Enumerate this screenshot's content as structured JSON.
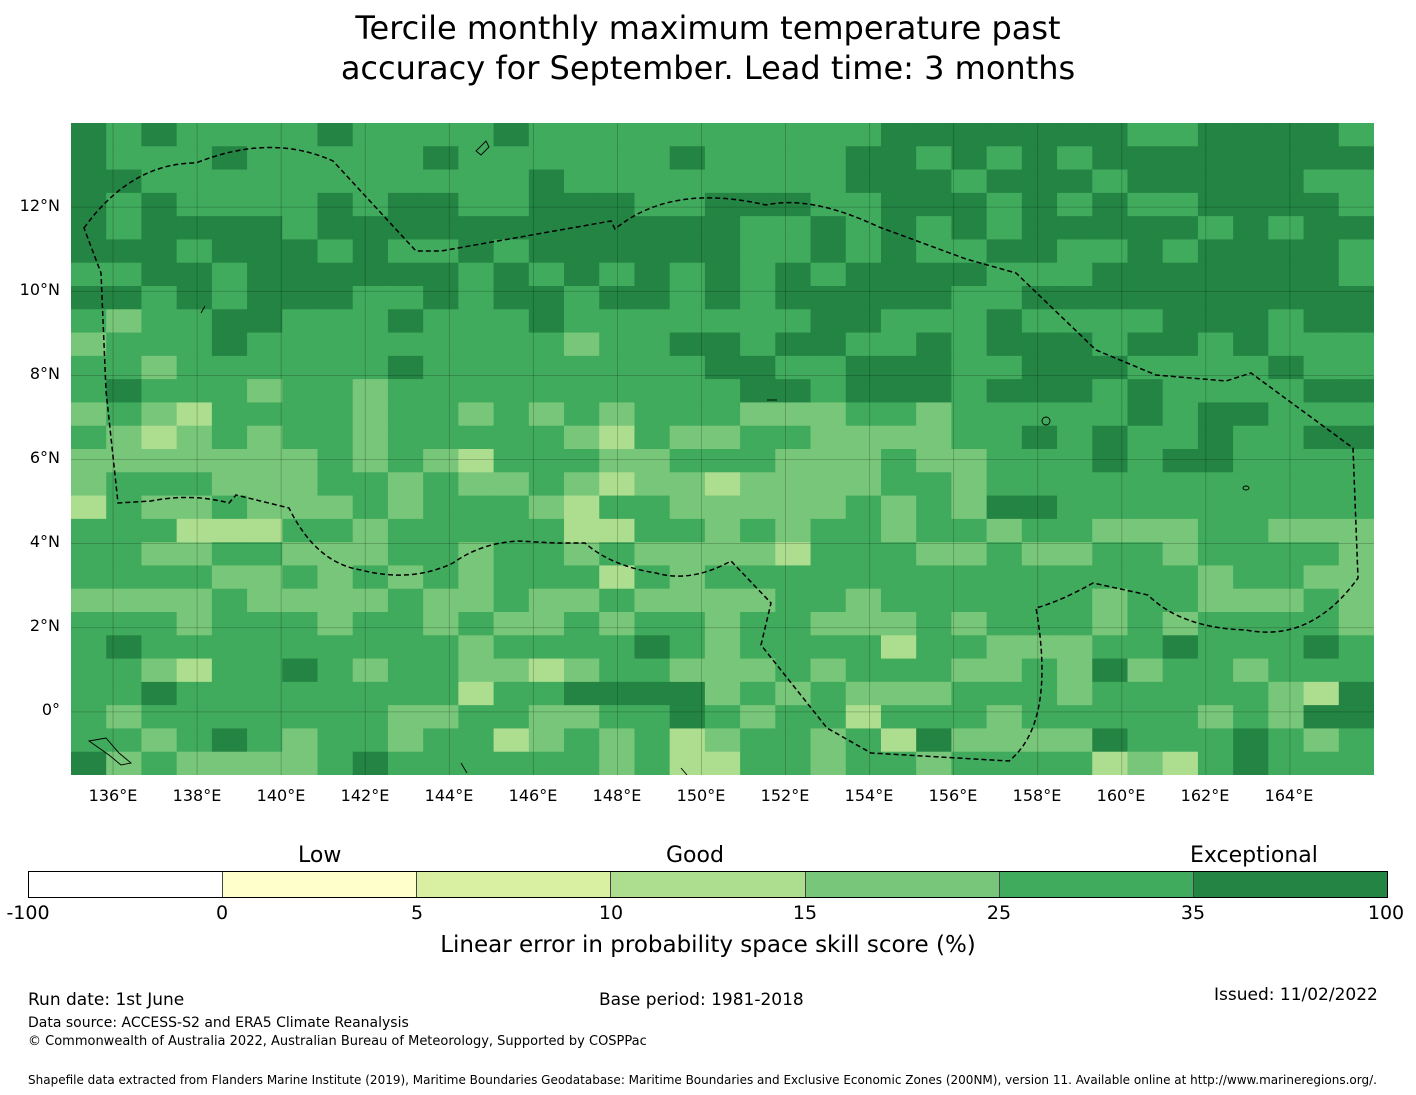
{
  "title_line1": "Tercile monthly maximum temperature past",
  "title_line2": "accuracy for September. Lead time: 3 months",
  "map": {
    "lon_labels": [
      "136°E",
      "138°E",
      "140°E",
      "142°E",
      "144°E",
      "146°E",
      "148°E",
      "150°E",
      "152°E",
      "154°E",
      "156°E",
      "158°E",
      "160°E",
      "162°E",
      "164°E"
    ],
    "lat_labels": [
      "12°N",
      "10°N",
      "8°N",
      "6°N",
      "4°N",
      "2°N",
      "0°"
    ],
    "grid_cells_lon": 37,
    "grid_cells_lat": 28,
    "lon_range": [
      135,
      166
    ],
    "lat_range": [
      -1.5,
      14
    ]
  },
  "legend": {
    "categories": [
      "Low",
      "Good",
      "Exceptional"
    ],
    "ticks": [
      "-100",
      "0",
      "5",
      "10",
      "15",
      "25",
      "35",
      "100"
    ],
    "colors": [
      "#ffffff",
      "#ffffcc",
      "#d9f0a3",
      "#addd8e",
      "#78c679",
      "#41ab5d",
      "#238443"
    ],
    "title": "Linear error in probability space skill score (%)"
  },
  "footer": {
    "run_date": "Run date: 1st June",
    "base_period": "Base period: 1981-2018",
    "issued": "Issued: 11/02/2022",
    "data_source": "Data source: ACCESS-S2 and ERA5 Climate Reanalysis",
    "copyright": "© Commonwealth of Australia 2022, Australian Bureau of Meteorology, Supported by COSPPac",
    "shapefile": "Shapefile data extracted from Flanders Marine Institute (2019), Maritime Boundaries Geodatabase: Maritime Boundaries and Exclusive Economic Zones (200NM), version 11. Available online at http://www.marineregions.org/."
  },
  "colors": {
    "dark": "#238443",
    "mid": "#41ab5d",
    "light": "#78c679",
    "lighter": "#addd8e",
    "palest": "#d9f0a3"
  }
}
